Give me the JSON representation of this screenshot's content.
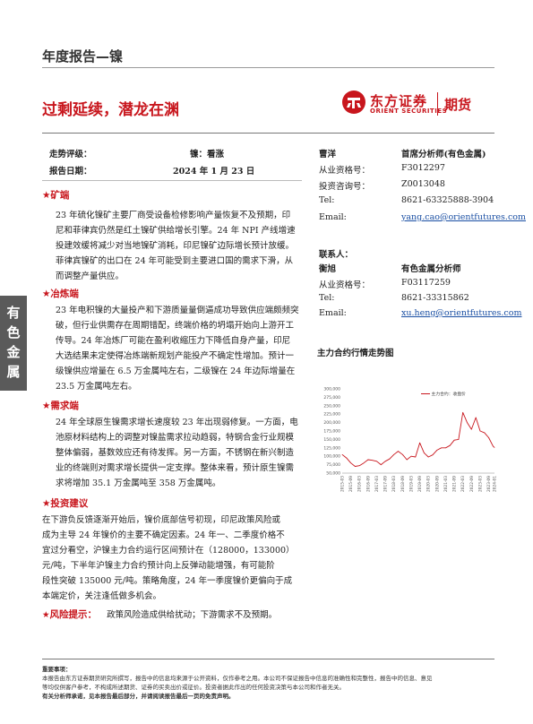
{
  "header": {
    "report_type": "年度报告—镍",
    "title": "过剩延续，潜龙在渊",
    "logo_cn": "东方证券",
    "logo_en": "ORIENT SECURITIES",
    "logo_futures": "期货"
  },
  "side_tab": [
    "有",
    "色",
    "金",
    "属"
  ],
  "meta": {
    "trend_label": "走势评级：",
    "trend_value": "镍：看涨",
    "date_label": "报告日期：",
    "date_value": "2024 年 1 月 23 日"
  },
  "sections": [
    {
      "heading": "矿端",
      "lines": [
        "23 年硫化镍矿主要厂商受设备检修影响产量恢复不及预期，印",
        "尼和菲律宾仍然是红土镍矿供给增长引擎。24 年 NPI 产线增速",
        "投建效缓将减少对当地镍矿消耗，印尼镍矿边际增长预计放缓。",
        "菲律宾镍矿的出口在 24 年可能受到主要进口国的需求下滑，从",
        "而调整产量供应。"
      ]
    },
    {
      "heading": "冶炼端",
      "lines": [
        "23 年电积镍的大量投产和下游质量量倒逼成功导致供应端颇频突",
        "破，但行业供需存在周期错配，终端价格的坍塌开始向上游开工",
        "传导。24 年冶炼厂可能在盈利收缩压力下降低自身产量，印尼",
        "大选结果未定使得冶炼端新规划产能投产不确定性增加。预计一",
        "级镍供应增量在 6.5 万金属吨左右，二级镍在 24 年边际增量在",
        "23.5 万金属吨左右。"
      ]
    },
    {
      "heading": "需求端",
      "lines": [
        "24 年全球原生镍需求增长速度较 23 年出现弱修复。一方面，电",
        "池原材料结构上的调整对镍盐需求拉动趋弱，特钢合金行业规模",
        "整体偏弱，基数效应还有待发挥。另一方面，不锈钢在新兴制造",
        "业的终端则对需求增长提供一定支撑。整体来看，预计原生镍需",
        "求将增加 35.1 万金属吨至 358 万金属吨。"
      ]
    },
    {
      "heading": "投资建议",
      "lines": [
        "在下游负反馈逐渐开始后，镍价底部信号初现，印尼政策风险或",
        "成为主导 24 年镍价的主要不确定因素。24 年一、二季度价格不",
        "宜过分看空，沪镍主力合约运行区间预计在（128000，133000）",
        "元/吨，下半年沪镍主力合约预计向上反弹动能增强，有可能阶",
        "段性突破 135000 元/吨。策略角度，24 年一季度镍价更偏向于成",
        "本端定价，关注逢低做多机会。"
      ]
    }
  ],
  "risk": {
    "label": "风险提示：",
    "text": "政策风险造成供给扰动；下游需求不及预期。"
  },
  "analysts": {
    "a1_name": "曹洋",
    "a1_title": "首席分析师(有色金属)",
    "a1_rows": [
      {
        "label": "从业资格号：",
        "value": "F3012297"
      },
      {
        "label": "投资咨询号：",
        "value": "Z0013048"
      },
      {
        "label": "Tel:",
        "value": "8621-63325888-3904"
      },
      {
        "label": "Email:",
        "value": "yang.cao@orientfutures.com"
      }
    ],
    "contact_label": "联系人：",
    "a2_name": "衡旭",
    "a2_title": "有色金属分析师",
    "a2_rows": [
      {
        "label": "从业资格号：",
        "value": "F03117259"
      },
      {
        "label": "Tel:",
        "value": "8621-33315862"
      },
      {
        "label": "Email:",
        "value": "xu.heng@orientfutures.com"
      }
    ]
  },
  "chart_data": {
    "type": "line",
    "title": "主力合约行情走势图",
    "legend": "主力合约：收盘价",
    "ylim": [
      50000,
      300000
    ],
    "y_ticks": [
      "300,000",
      "275,000",
      "250,000",
      "225,000",
      "200,000",
      "175,000",
      "150,000",
      "125,000",
      "100,000",
      "75,000",
      "50,000"
    ],
    "x_ticks": [
      "2015-03",
      "2015-09",
      "2016-03",
      "2016-09",
      "2017-03",
      "2017-09",
      "2018-03",
      "2018-09",
      "2019-03",
      "2019-09",
      "2020-03",
      "2020-09",
      "2021-03",
      "2021-09",
      "2022-03",
      "2022-09",
      "2023-03",
      "2023-09",
      "2024-01"
    ],
    "series": [
      {
        "name": "主力合约：收盘价",
        "color": "#c8161d",
        "x": [
          "2015-03",
          "2015-06",
          "2015-09",
          "2015-12",
          "2016-03",
          "2016-06",
          "2016-09",
          "2016-12",
          "2017-03",
          "2017-06",
          "2017-09",
          "2017-12",
          "2018-03",
          "2018-06",
          "2018-09",
          "2018-12",
          "2019-03",
          "2019-06",
          "2019-09",
          "2019-12",
          "2020-03",
          "2020-06",
          "2020-09",
          "2020-12",
          "2021-03",
          "2021-06",
          "2021-09",
          "2021-12",
          "2022-03",
          "2022-06",
          "2022-09",
          "2022-12",
          "2023-03",
          "2023-06",
          "2023-09",
          "2023-12",
          "2024-01"
        ],
        "values": [
          105000,
          95000,
          80000,
          70000,
          72000,
          80000,
          90000,
          88000,
          85000,
          75000,
          85000,
          92000,
          105000,
          115000,
          105000,
          90000,
          100000,
          98000,
          140000,
          110000,
          98000,
          104000,
          118000,
          125000,
          125000,
          132000,
          148000,
          150000,
          230000,
          200000,
          180000,
          215000,
          175000,
          170000,
          155000,
          130000,
          126000
        ]
      }
    ]
  },
  "disclaimer": {
    "heading": "重要事项：",
    "lines": [
      "本报告由东方证券期货研究所撰写，报告中的信息均来源于公开资料，仅作参考之用。本公司不保证报告中信息的准确性和完整性，报告中的信息、意见",
      "等均仅供客户参考，不构成所述期货、证券的买卖出价或征价。投资者据此作出的任何投资决策与本公司和作者无关。",
      "有关分析师承诺，见本报告最后部分，并请阅读报告最后一页的免责声明。"
    ]
  }
}
